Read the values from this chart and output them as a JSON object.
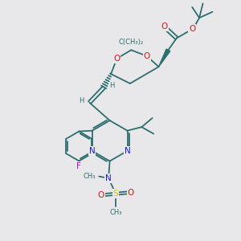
{
  "background_color": "#e8e8ea",
  "bond_color": "#2d6e6e",
  "N_color": "#1a1acc",
  "O_color": "#cc1a1a",
  "F_color": "#cc00cc",
  "S_color": "#cccc00",
  "C_color": "#2d6e6e",
  "figsize": [
    3.0,
    3.0
  ],
  "dpi": 100,
  "xlim": [
    0,
    10
  ],
  "ylim": [
    0,
    10
  ]
}
